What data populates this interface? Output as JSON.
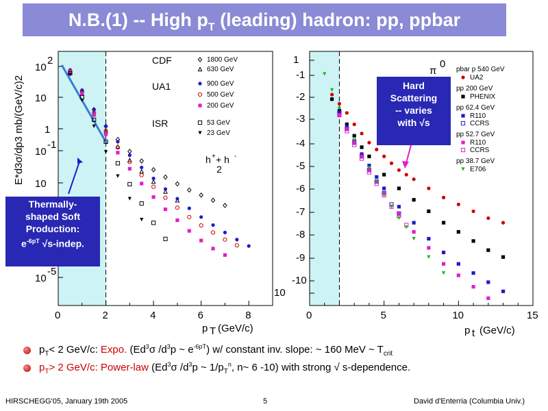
{
  "slide": {
    "title_main": "N.B.(1) -- High p",
    "title_sub": "T",
    "title_rest": " (leading) hadron: pp, ppbar"
  },
  "callouts": {
    "thermal": [
      "Thermally-",
      "shaped Soft",
      "Production:",
      "e",
      "-6pT",
      " √s-indep."
    ],
    "hard": [
      "Hard",
      "Scattering",
      "-- varies",
      "with √s"
    ]
  },
  "bullets": [
    {
      "a": "p",
      "a_sub": "T",
      "b": "< 2 GeV/c: ",
      "c": "Expo.",
      "d": " (Ed",
      "d_sup": "3",
      "e": "σ /d",
      "e_sup": "3",
      "f": "p ~ e",
      "f_sup": "-6pT",
      "g": ") w/ constant inv. slope: ~ 160 MeV ~ T",
      "g_sub": "crit"
    },
    {
      "a": "p",
      "a_sub": "T",
      "b": "> 2 GeV/c: ",
      "c": "Power-law",
      "d": " (Ed",
      "d_sup": "3",
      "e": "σ /d",
      "e_sup": "3",
      "f": "p ~ 1/p",
      "f_sub": "T",
      "f_sup": "n",
      "g": ", n~ 6 -10) with strong √ s-dependence."
    }
  ],
  "footer": {
    "left": "HIRSCHEGG'05, January 19th 2005",
    "center": "5",
    "right": "David d'Enterria (Columbia Univ.)"
  },
  "colors": {
    "title_bg": "#8a8ad6",
    "callout_bg": "#2828b4",
    "soft_band": "#cdf3f5",
    "bullet_accent": "#cc0000"
  },
  "chart_data": [
    {
      "type": "scatter",
      "title": "",
      "xlabel": "pT (GeV/c)",
      "ylabel": "E*d3σ/dp3 mb/(GeV/c)2",
      "xlim": [
        0,
        9
      ],
      "x_ticks": [
        "0",
        "2",
        "4",
        "6",
        "8"
      ],
      "y_tick_labels": [
        {
          "base": "10",
          "exp": "2"
        },
        {
          "base": "10",
          "exp": ""
        },
        {
          "base": "1",
          "exp": ""
        },
        {
          "base": "10",
          "exp": "-1"
        },
        {
          "base": "10",
          "exp": ""
        },
        {
          "base": "10",
          "exp": ""
        },
        {
          "base": "",
          "exp": ""
        },
        {
          "base": "10",
          "exp": "-5"
        }
      ],
      "shaded_region_x": [
        0,
        2
      ],
      "legend_groups": [
        {
          "label": "CDF",
          "entries": [
            {
              "name": "1800 GeV",
              "color": "#000000",
              "marker": "diamond-open"
            },
            {
              "name": "630 GeV",
              "color": "#000000",
              "marker": "triangle-open"
            }
          ]
        },
        {
          "label": "UA1",
          "entries": [
            {
              "name": "900 GeV",
              "color": "#1d1dc8",
              "marker": "circle"
            },
            {
              "name": "500 GeV",
              "color": "#cc0000",
              "marker": "circle-open"
            },
            {
              "name": "200 GeV",
              "color": "#e020c8",
              "marker": "square"
            }
          ]
        },
        {
          "label": "ISR",
          "entries": [
            {
              "name": "53 GeV",
              "color": "#000000",
              "marker": "square-open"
            },
            {
              "name": "23 GeV",
              "color": "#000000",
              "marker": "triangle-down"
            }
          ]
        }
      ],
      "annotation": [
        "h",
        "+",
        "+ h",
        "-",
        "2"
      ],
      "series": [
        {
          "name": "1800 GeV",
          "color": "#000000",
          "marker": "diamond-open",
          "x": [
            0.5,
            1.0,
            1.5,
            2.0,
            2.5,
            3.0,
            3.5,
            4.0,
            4.5,
            5.0,
            5.5,
            6.0,
            6.5,
            7.0
          ],
          "y": [
            1.83,
            1.2,
            0.62,
            0.1,
            -0.31,
            -0.68,
            -0.98,
            -1.25,
            -1.48,
            -1.69,
            -1.88,
            -2.04,
            -2.2,
            -2.36
          ]
        },
        {
          "name": "630 GeV",
          "color": "#000000",
          "marker": "triangle-open",
          "x": [
            0.5,
            1.0,
            1.5,
            2.0,
            2.5,
            3.0,
            3.5,
            4.0,
            4.5,
            5.0
          ],
          "y": [
            1.8,
            1.12,
            0.5,
            -0.06,
            -0.53,
            -0.95,
            -1.3,
            -1.62,
            -1.93,
            -2.2
          ]
        },
        {
          "name": "900 GeV",
          "color": "#1d1dc8",
          "marker": "circle",
          "x": [
            0.5,
            1.0,
            1.5,
            2.0,
            2.5,
            3.0,
            3.5,
            4.0,
            4.5,
            5.0,
            5.5,
            6.0,
            6.5,
            7.0,
            7.5,
            8.0
          ],
          "y": [
            1.85,
            1.22,
            0.62,
            0.1,
            -0.38,
            -0.8,
            -1.18,
            -1.52,
            -1.85,
            -2.15,
            -2.45,
            -2.72,
            -2.97,
            -3.2,
            -3.42,
            -3.62
          ]
        },
        {
          "name": "500 GeV",
          "color": "#cc0000",
          "marker": "circle-open",
          "x": [
            0.5,
            1.0,
            1.5,
            2.0,
            2.5,
            3.0,
            3.5,
            4.0,
            4.5,
            5.0,
            5.5,
            6.0,
            6.5,
            7.0,
            7.5
          ],
          "y": [
            1.82,
            1.15,
            0.52,
            -0.04,
            -0.56,
            -1.01,
            -1.42,
            -1.78,
            -2.12,
            -2.43,
            -2.72,
            -2.98,
            -3.2,
            -3.42,
            -3.6
          ]
        },
        {
          "name": "200 GeV",
          "color": "#e020c8",
          "marker": "square",
          "x": [
            0.5,
            1.0,
            1.5,
            2.0,
            2.5,
            3.0,
            3.5,
            4.0,
            4.5,
            5.0,
            5.5,
            6.0,
            6.5,
            7.0
          ],
          "y": [
            1.8,
            1.12,
            0.45,
            -0.15,
            -0.72,
            -1.22,
            -1.68,
            -2.1,
            -2.48,
            -2.82,
            -3.15,
            -3.45,
            -3.7,
            -3.9
          ]
        },
        {
          "name": "53 GeV",
          "color": "#000000",
          "marker": "square-open",
          "x": [
            0.5,
            1.0,
            1.5,
            2.0,
            2.5,
            3.0,
            3.5,
            4.0,
            4.5
          ],
          "y": [
            1.75,
            1.0,
            0.3,
            -0.38,
            -1.05,
            -1.7,
            -2.3,
            -2.9,
            -3.4
          ]
        },
        {
          "name": "23 GeV",
          "color": "#000000",
          "marker": "triangle-down",
          "x": [
            0.5,
            1.0,
            1.5,
            2.0,
            2.5,
            3.0,
            3.5
          ],
          "y": [
            1.7,
            0.9,
            0.1,
            -0.7,
            -1.45,
            -2.15,
            -2.8
          ]
        }
      ]
    },
    {
      "type": "scatter",
      "title": "",
      "xlabel": "pt (GeV/c)",
      "ylabel": "",
      "xlim": [
        0,
        15
      ],
      "x_ticks": [
        "0",
        "5",
        "10",
        "15"
      ],
      "y_tick_labels": [
        {
          "base": "1",
          "exp": ""
        },
        {
          "base": "",
          "exp": "-1"
        },
        {
          "base": "",
          "exp": "-2"
        },
        {
          "base": "",
          "exp": "-3"
        },
        {
          "base": "",
          "exp": "-4"
        },
        {
          "base": "",
          "exp": "-5"
        },
        {
          "base": "",
          "exp": "-6"
        },
        {
          "base": "",
          "exp": "-7"
        },
        {
          "base": "",
          "exp": "-8"
        },
        {
          "base": "",
          "exp": "-9"
        },
        {
          "base": "",
          "exp": "-10"
        },
        {
          "base": "10",
          "exp": ""
        }
      ],
      "shaded_region_x": [
        0,
        2
      ],
      "annotation": [
        "π",
        "0"
      ],
      "legend_groups": [
        {
          "label": "pbar p  540 GeV",
          "entries": [
            {
              "name": "UA2",
              "color": "#cc0000",
              "marker": "circle"
            }
          ]
        },
        {
          "label": "pp  200 GeV",
          "entries": [
            {
              "name": "PHENIX",
              "color": "#000000",
              "marker": "square"
            }
          ]
        },
        {
          "label": "pp  62.4 GeV",
          "entries": [
            {
              "name": "R110",
              "color": "#1d1dc8",
              "marker": "square"
            },
            {
              "name": "CCRS",
              "color": "#1d1dc8",
              "marker": "square-open"
            }
          ]
        },
        {
          "label": "pp  52.7 GeV",
          "entries": [
            {
              "name": "R110",
              "color": "#e020c8",
              "marker": "square"
            },
            {
              "name": "CCRS",
              "color": "#e020c8",
              "marker": "square-open"
            }
          ]
        },
        {
          "label": "pp  38.7 GeV",
          "entries": [
            {
              "name": "E706",
              "color": "#20b020",
              "marker": "triangle-down"
            }
          ]
        }
      ],
      "series": [
        {
          "name": "UA2",
          "color": "#cc0000",
          "marker": "circle",
          "x": [
            1.5,
            2.0,
            2.5,
            3.0,
            3.5,
            4.0,
            4.5,
            5.0,
            5.5,
            6.0,
            6.5,
            7.0,
            8.0,
            9.0,
            10.0,
            11.0,
            12.0,
            13.0
          ],
          "y": [
            -1.2,
            -1.6,
            -2.0,
            -2.5,
            -2.9,
            -3.3,
            -3.6,
            -3.9,
            -4.2,
            -4.5,
            -4.7,
            -4.9,
            -5.3,
            -5.7,
            -6.0,
            -6.3,
            -6.6,
            -6.8
          ]
        },
        {
          "name": "PHENIX",
          "color": "#000000",
          "marker": "square",
          "x": [
            1.5,
            2.0,
            2.5,
            3.0,
            3.5,
            4.0,
            5.0,
            6.0,
            7.0,
            8.0,
            9.0,
            10.0,
            11.0,
            12.0,
            13.0
          ],
          "y": [
            -1.4,
            -1.9,
            -2.5,
            -3.0,
            -3.5,
            -3.9,
            -4.7,
            -5.3,
            -5.8,
            -6.3,
            -6.8,
            -7.2,
            -7.6,
            -8.0,
            -8.3
          ]
        },
        {
          "name": "R110 62.4 GeV",
          "color": "#1d1dc8",
          "marker": "square",
          "x": [
            2.0,
            2.5,
            3.0,
            3.5,
            4.0,
            4.5,
            5.0,
            6.0,
            7.0,
            8.0,
            9.0,
            10.0,
            11.0,
            12.0,
            13.0
          ],
          "y": [
            -2.0,
            -2.6,
            -3.2,
            -3.8,
            -4.3,
            -4.8,
            -5.3,
            -6.1,
            -6.8,
            -7.5,
            -8.1,
            -8.6,
            -9.0,
            -9.4,
            -9.8
          ]
        },
        {
          "name": "CCRS 62.4 GeV",
          "color": "#1d1dc8",
          "marker": "square-open",
          "x": [
            2.0,
            2.5,
            3.0,
            3.5,
            4.0,
            4.5,
            5.0,
            5.5,
            6.0
          ],
          "y": [
            -2.0,
            -2.7,
            -3.3,
            -3.9,
            -4.5,
            -5.0,
            -5.5,
            -6.0,
            -6.4
          ]
        },
        {
          "name": "R110 52.7 GeV",
          "color": "#e020c8",
          "marker": "square",
          "x": [
            2.0,
            2.5,
            3.0,
            3.5,
            4.0,
            4.5,
            5.0,
            6.0,
            7.0,
            8.0,
            9.0,
            10.0,
            11.0,
            12.0
          ],
          "y": [
            -2.1,
            -2.7,
            -3.3,
            -3.9,
            -4.5,
            -5.0,
            -5.5,
            -6.4,
            -7.2,
            -7.9,
            -8.6,
            -9.1,
            -9.6,
            -10.1
          ]
        },
        {
          "name": "CCRS 52.7 GeV",
          "color": "#e020c8",
          "marker": "square-open",
          "x": [
            2.0,
            2.5,
            3.0,
            3.5,
            4.0,
            4.5,
            5.0,
            5.5,
            6.0,
            6.5
          ],
          "y": [
            -2.1,
            -2.8,
            -3.4,
            -4.0,
            -4.6,
            -5.1,
            -5.6,
            -6.1,
            -6.5,
            -6.9
          ]
        },
        {
          "name": "E706",
          "color": "#20b020",
          "marker": "triangle-down",
          "x": [
            1.0,
            1.5,
            2.0,
            3.0,
            4.0,
            4.5,
            5.0,
            5.5,
            6.0,
            6.5,
            7.0,
            8.0,
            9.0
          ],
          "y": [
            -0.3,
            -1.0,
            -1.8,
            -3.2,
            -4.4,
            -5.0,
            -5.6,
            -6.1,
            -6.6,
            -7.0,
            -7.5,
            -8.3,
            -9.0
          ]
        }
      ]
    }
  ]
}
